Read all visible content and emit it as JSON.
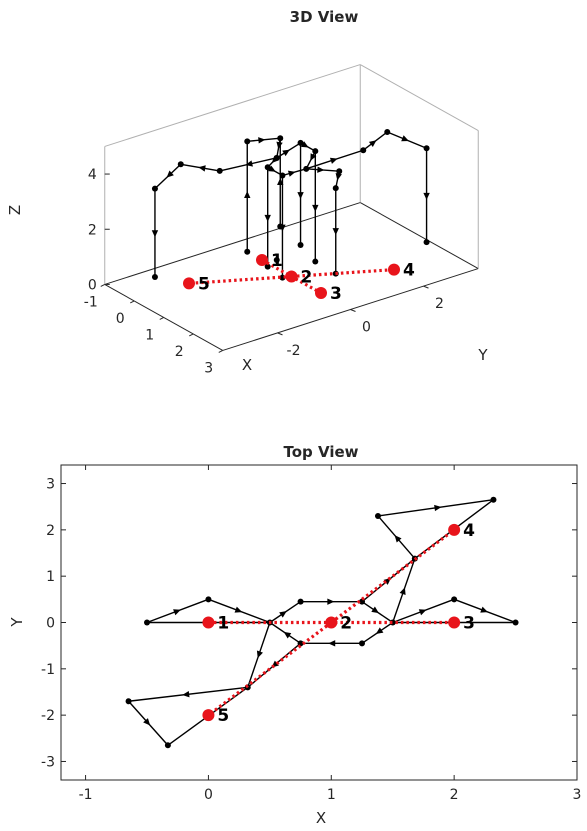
{
  "colors": {
    "graph": "#000000",
    "highlight": "#e8141b",
    "box": "#262626",
    "grid": "#b0b0b0"
  },
  "chart_data": [
    {
      "type": "scatter",
      "view": "3d",
      "title": "3D View",
      "xlabel": "X",
      "ylabel": "Y",
      "zlabel": "Z",
      "xlim": [
        -1,
        3
      ],
      "ylim": [
        -3.5,
        3.5
      ],
      "zlim": [
        0,
        5
      ],
      "xticks": [
        "-1",
        "0",
        "1",
        "2",
        "3"
      ],
      "yticks": [
        "-2",
        "0",
        "2"
      ],
      "zticks": [
        "0",
        "2",
        "4"
      ],
      "highlight_nodes": [
        {
          "label": "1",
          "x": 0,
          "y": 0,
          "z": 0
        },
        {
          "label": "2",
          "x": 1,
          "y": 0,
          "z": 0
        },
        {
          "label": "3",
          "x": 2,
          "y": 0,
          "z": 0
        },
        {
          "label": "4",
          "x": 2,
          "y": 2,
          "z": 0
        },
        {
          "label": "5",
          "x": 0,
          "y": -2,
          "z": 0
        }
      ],
      "highlight_edges": [
        [
          0,
          2
        ],
        [
          1,
          3
        ],
        [
          1,
          4
        ]
      ],
      "graph_points": [
        [
          -0.5,
          0,
          0
        ],
        [
          -0.5,
          0,
          4
        ],
        [
          0,
          0.5,
          1
        ],
        [
          0,
          0.5,
          4.2
        ],
        [
          0.5,
          0,
          4
        ],
        [
          0.5,
          0,
          0.3
        ],
        [
          0.75,
          0.45,
          4.5
        ],
        [
          0.75,
          0.45,
          0.8
        ],
        [
          1.25,
          0.45,
          4.5
        ],
        [
          1.25,
          0.45,
          0.5
        ],
        [
          0.75,
          -0.45,
          4
        ],
        [
          0.75,
          -0.45,
          0.4
        ],
        [
          1.25,
          -0.45,
          4
        ],
        [
          1.25,
          -0.45,
          0.3
        ],
        [
          1.5,
          0,
          4.2
        ],
        [
          2,
          0.5,
          4.2
        ],
        [
          2.5,
          0,
          4.1
        ],
        [
          2.5,
          0,
          1.0
        ],
        [
          1.7,
          1.4,
          4.4
        ],
        [
          1.4,
          2.3,
          4.5
        ],
        [
          2.3,
          2.65,
          4.3
        ],
        [
          2.3,
          2.65,
          0.9
        ],
        [
          0.3,
          -1.4,
          4
        ],
        [
          -0.65,
          -1.7,
          3.8
        ],
        [
          -0.35,
          -2.65,
          3.5
        ],
        [
          -0.35,
          -2.65,
          0.3
        ]
      ],
      "graph_edges": [
        [
          0,
          1
        ],
        [
          1,
          3
        ],
        [
          3,
          4
        ],
        [
          4,
          6
        ],
        [
          6,
          8
        ],
        [
          8,
          14
        ],
        [
          14,
          15
        ],
        [
          15,
          16
        ],
        [
          16,
          17
        ],
        [
          4,
          10
        ],
        [
          10,
          12
        ],
        [
          12,
          14
        ],
        [
          6,
          7
        ],
        [
          8,
          9
        ],
        [
          10,
          11
        ],
        [
          12,
          13
        ],
        [
          2,
          3
        ],
        [
          14,
          18
        ],
        [
          18,
          19
        ],
        [
          19,
          20
        ],
        [
          20,
          21
        ],
        [
          4,
          22
        ],
        [
          22,
          23
        ],
        [
          23,
          24
        ],
        [
          24,
          25
        ]
      ]
    },
    {
      "type": "scatter",
      "view": "top",
      "title": "Top View",
      "xlabel": "X",
      "ylabel": "Y",
      "xlim": [
        -1.2,
        3
      ],
      "ylim": [
        -3.4,
        3.4
      ],
      "xticks": [
        "-1",
        "0",
        "1",
        "2",
        "3"
      ],
      "yticks": [
        "3",
        "2",
        "1",
        "0",
        "-1",
        "-2",
        "-3"
      ],
      "highlight_nodes": [
        {
          "label": "1",
          "x": 0,
          "y": 0
        },
        {
          "label": "2",
          "x": 1,
          "y": 0
        },
        {
          "label": "3",
          "x": 2,
          "y": 0
        },
        {
          "label": "4",
          "x": 2,
          "y": 2
        },
        {
          "label": "5",
          "x": 0,
          "y": -2
        }
      ],
      "highlight_edges": [
        [
          0,
          2
        ],
        [
          1,
          3
        ],
        [
          1,
          4
        ]
      ],
      "graph_points": [
        [
          -0.5,
          0
        ],
        [
          0,
          0.5
        ],
        [
          0.5,
          0
        ],
        [
          0.75,
          0.45
        ],
        [
          1.25,
          0.45
        ],
        [
          1.5,
          0
        ],
        [
          1.25,
          -0.45
        ],
        [
          0.75,
          -0.45
        ],
        [
          2,
          0.5
        ],
        [
          2.5,
          0
        ],
        [
          1.68,
          1.38
        ],
        [
          1.38,
          2.3
        ],
        [
          2.32,
          2.65
        ],
        [
          0.32,
          -1.4
        ],
        [
          -0.65,
          -1.7
        ],
        [
          -0.33,
          -2.65
        ]
      ],
      "graph_edges": [
        [
          0,
          1
        ],
        [
          1,
          2
        ],
        [
          2,
          0
        ],
        [
          2,
          3
        ],
        [
          3,
          4
        ],
        [
          4,
          5
        ],
        [
          5,
          6
        ],
        [
          6,
          7
        ],
        [
          7,
          2
        ],
        [
          5,
          8
        ],
        [
          8,
          9
        ],
        [
          9,
          5
        ],
        [
          5,
          10
        ],
        [
          10,
          11
        ],
        [
          11,
          12
        ],
        [
          12,
          10
        ],
        [
          2,
          13
        ],
        [
          13,
          14
        ],
        [
          14,
          15
        ],
        [
          15,
          13
        ],
        [
          7,
          13
        ],
        [
          4,
          10
        ]
      ]
    }
  ]
}
